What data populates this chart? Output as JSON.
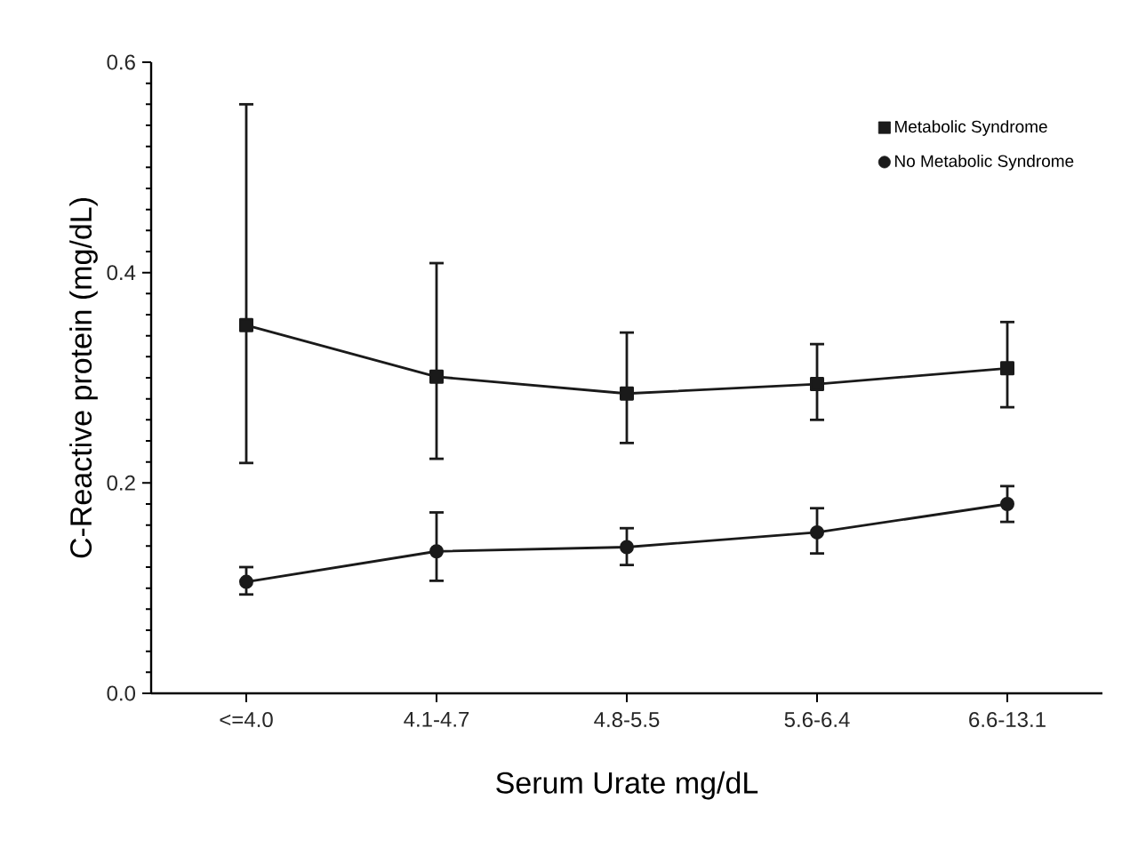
{
  "chart_data": {
    "type": "line",
    "xlabel": "Serum Urate mg/dL",
    "ylabel": "C-Reactive protein (mg/dL)",
    "categories": [
      "<=4.0",
      "4.1-4.7",
      "4.8-5.5",
      "5.6-6.4",
      "6.6-13.1"
    ],
    "ylim": [
      0,
      0.6
    ],
    "yticks": [
      {
        "value": 0,
        "label": "0.0"
      },
      0.2,
      0.4,
      0.6
    ],
    "legend": "top right",
    "series": [
      {
        "name": "Metabolic Syndrome",
        "color": "#1a1a1a",
        "marker": "square",
        "values": [
          0.35,
          0.301,
          0.285,
          0.294,
          0.309
        ],
        "errors": [
          [
            0.219,
            0.56
          ],
          [
            0.223,
            0.409
          ],
          [
            0.238,
            0.343
          ],
          [
            0.26,
            0.332
          ],
          [
            0.272,
            0.353
          ]
        ]
      },
      {
        "name": "No Metabolic Syndrome",
        "color": "#1a1a1a",
        "marker": "circle",
        "values": [
          0.106,
          0.135,
          0.139,
          0.153,
          0.18
        ],
        "errors": [
          [
            0.094,
            0.12
          ],
          [
            0.107,
            0.172
          ],
          [
            0.122,
            0.157
          ],
          [
            0.133,
            0.176
          ],
          [
            0.163,
            0.197
          ]
        ]
      }
    ]
  }
}
